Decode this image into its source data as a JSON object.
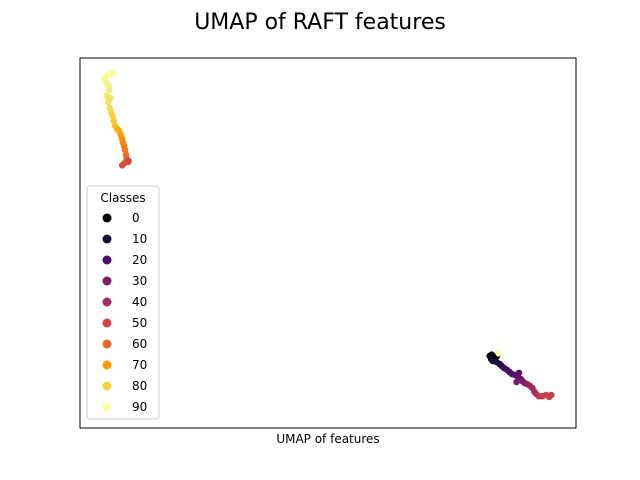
{
  "chart_data": {
    "type": "scatter",
    "title": "UMAP of RAFT features",
    "xlabel": "UMAP of features",
    "ylabel": "",
    "xlim": [
      0,
      100
    ],
    "ylim": [
      0,
      100
    ],
    "grid": false,
    "show_ticks": false,
    "legend": {
      "title": "Classes",
      "placement": "center-left",
      "entries": [
        {
          "label": "0",
          "color": "#000004"
        },
        {
          "label": "10",
          "color": "#1b0c41"
        },
        {
          "label": "20",
          "color": "#4a0c6b"
        },
        {
          "label": "30",
          "color": "#781c6d"
        },
        {
          "label": "40",
          "color": "#a52c60"
        },
        {
          "label": "50",
          "color": "#cf4446"
        },
        {
          "label": "60",
          "color": "#ed6925"
        },
        {
          "label": "70",
          "color": "#fb9b06"
        },
        {
          "label": "80",
          "color": "#f7d13d"
        },
        {
          "label": "90",
          "color": "#fcffa4"
        }
      ]
    },
    "colormap": "inferno",
    "points": [
      {
        "x": 5.5,
        "y": 95.4,
        "c": 98
      },
      {
        "x": 6.1,
        "y": 95.7,
        "c": 99
      },
      {
        "x": 5.0,
        "y": 94.6,
        "c": 96
      },
      {
        "x": 6.7,
        "y": 95.9,
        "c": 97
      },
      {
        "x": 5.3,
        "y": 93.5,
        "c": 94
      },
      {
        "x": 5.8,
        "y": 92.4,
        "c": 93
      },
      {
        "x": 5.9,
        "y": 91.3,
        "c": 91
      },
      {
        "x": 5.4,
        "y": 89.7,
        "c": 89
      },
      {
        "x": 6.1,
        "y": 89.2,
        "c": 87
      },
      {
        "x": 5.7,
        "y": 88.1,
        "c": 86
      },
      {
        "x": 6.0,
        "y": 86.5,
        "c": 84
      },
      {
        "x": 6.3,
        "y": 85.4,
        "c": 82
      },
      {
        "x": 6.6,
        "y": 84.3,
        "c": 80
      },
      {
        "x": 6.8,
        "y": 83.0,
        "c": 78
      },
      {
        "x": 7.1,
        "y": 81.6,
        "c": 76
      },
      {
        "x": 7.5,
        "y": 80.8,
        "c": 74
      },
      {
        "x": 7.9,
        "y": 80.3,
        "c": 72
      },
      {
        "x": 8.2,
        "y": 79.2,
        "c": 70
      },
      {
        "x": 8.5,
        "y": 78.1,
        "c": 68
      },
      {
        "x": 8.7,
        "y": 77.0,
        "c": 66
      },
      {
        "x": 8.9,
        "y": 76.2,
        "c": 64
      },
      {
        "x": 9.1,
        "y": 75.1,
        "c": 62
      },
      {
        "x": 9.3,
        "y": 73.8,
        "c": 60
      },
      {
        "x": 9.4,
        "y": 72.7,
        "c": 58
      },
      {
        "x": 9.7,
        "y": 71.9,
        "c": 56
      },
      {
        "x": 9.0,
        "y": 71.6,
        "c": 54
      },
      {
        "x": 8.5,
        "y": 71.0,
        "c": 52
      },
      {
        "x": 9.8,
        "y": 72.2,
        "c": 51
      },
      {
        "x": 82.6,
        "y": 19.5,
        "c": 2
      },
      {
        "x": 83.0,
        "y": 19.8,
        "c": 1
      },
      {
        "x": 83.4,
        "y": 19.2,
        "c": 3
      },
      {
        "x": 82.9,
        "y": 18.6,
        "c": 5
      },
      {
        "x": 83.7,
        "y": 18.9,
        "c": 4
      },
      {
        "x": 84.1,
        "y": 19.5,
        "c": 0
      },
      {
        "x": 84.4,
        "y": 20.2,
        "c": 99
      },
      {
        "x": 83.2,
        "y": 18.1,
        "c": 7
      },
      {
        "x": 84.0,
        "y": 17.8,
        "c": 9
      },
      {
        "x": 84.6,
        "y": 17.3,
        "c": 11
      },
      {
        "x": 85.0,
        "y": 16.8,
        "c": 13
      },
      {
        "x": 85.5,
        "y": 16.2,
        "c": 15
      },
      {
        "x": 86.1,
        "y": 15.7,
        "c": 17
      },
      {
        "x": 86.6,
        "y": 15.1,
        "c": 19
      },
      {
        "x": 87.1,
        "y": 14.6,
        "c": 21
      },
      {
        "x": 87.7,
        "y": 14.3,
        "c": 23
      },
      {
        "x": 88.3,
        "y": 13.8,
        "c": 25
      },
      {
        "x": 88.5,
        "y": 14.9,
        "c": 24
      },
      {
        "x": 88.9,
        "y": 13.2,
        "c": 27
      },
      {
        "x": 89.2,
        "y": 12.7,
        "c": 29
      },
      {
        "x": 88.0,
        "y": 12.4,
        "c": 31
      },
      {
        "x": 89.6,
        "y": 12.2,
        "c": 32
      },
      {
        "x": 90.1,
        "y": 11.9,
        "c": 34
      },
      {
        "x": 90.7,
        "y": 11.4,
        "c": 36
      },
      {
        "x": 91.2,
        "y": 10.8,
        "c": 38
      },
      {
        "x": 91.6,
        "y": 9.8,
        "c": 40
      },
      {
        "x": 92.0,
        "y": 9.2,
        "c": 42
      },
      {
        "x": 92.5,
        "y": 8.6,
        "c": 44
      },
      {
        "x": 93.2,
        "y": 8.6,
        "c": 46
      },
      {
        "x": 94.0,
        "y": 8.9,
        "c": 48
      },
      {
        "x": 94.6,
        "y": 8.4,
        "c": 49
      },
      {
        "x": 95.0,
        "y": 8.9,
        "c": 47
      }
    ]
  }
}
